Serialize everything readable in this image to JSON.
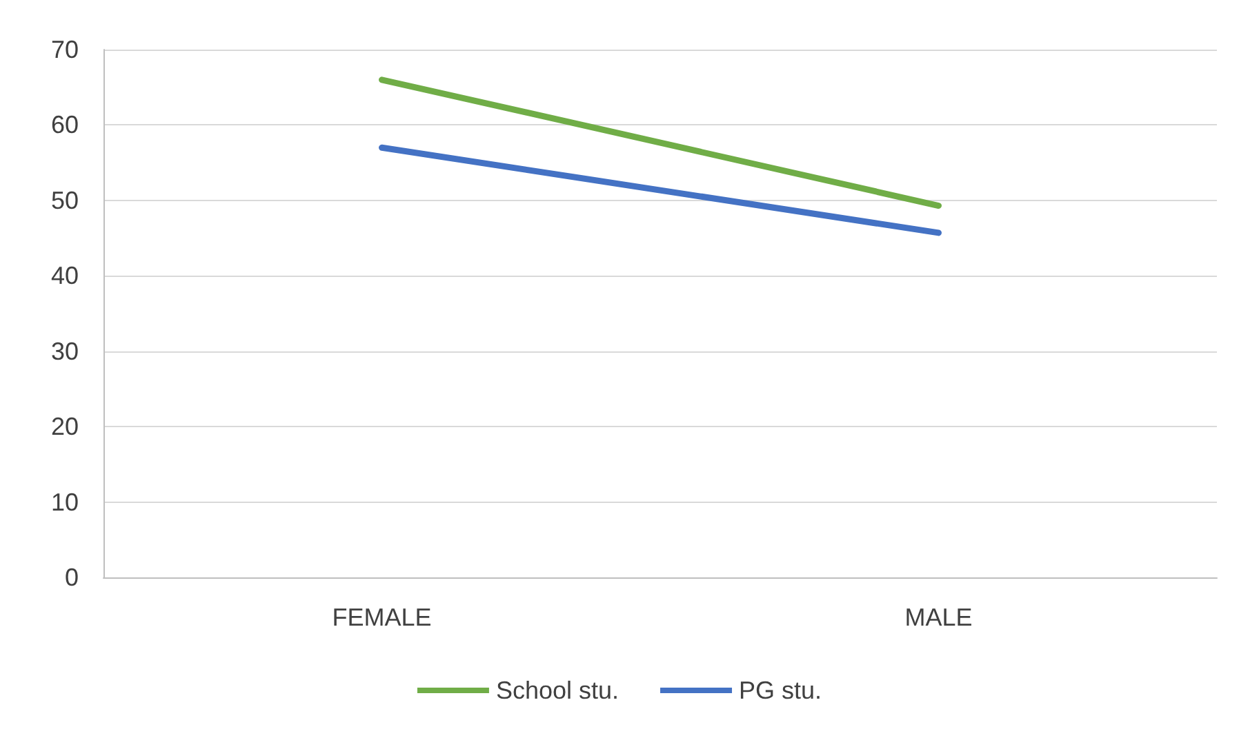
{
  "chart_data": {
    "type": "line",
    "categories": [
      "FEMALE",
      "MALE"
    ],
    "series": [
      {
        "name": "School stu.",
        "color": "#70ad47",
        "values": [
          66,
          49.3
        ]
      },
      {
        "name": "PG stu.",
        "color": "#4472c4",
        "values": [
          57,
          45.7
        ]
      }
    ],
    "ylim": [
      0,
      70
    ],
    "yticks": [
      0,
      10,
      20,
      30,
      40,
      50,
      60,
      70
    ],
    "grid": "y",
    "legend": "bottom",
    "marker": "none",
    "line_style": "solid"
  }
}
